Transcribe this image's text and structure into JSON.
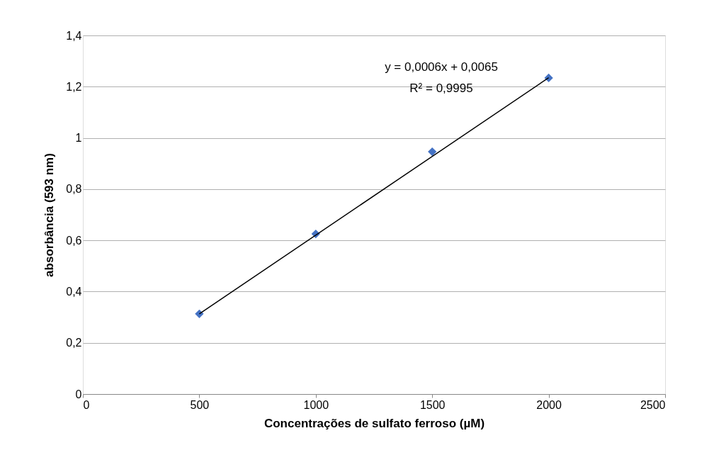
{
  "chart_data": {
    "type": "scatter",
    "xlabel": "Concentrações de sulfato ferroso (µM)",
    "ylabel": "absorbância (593 nm)",
    "x": [
      500,
      1000,
      1500,
      2000
    ],
    "series": [
      {
        "color": "#4472c4",
        "marker": "diamond",
        "values": [
          0.313,
          0.625,
          0.946,
          1.234
        ]
      },
      {
        "type": "line",
        "color": "#000000",
        "line_style": "solid",
        "marker": "none",
        "x": [
          500,
          2000
        ],
        "values": [
          0.313,
          1.235
        ]
      }
    ],
    "annotations": [
      "y = 0,0006x + 0,0065",
      "R² = 0,9995"
    ],
    "xlim": [
      0,
      2500
    ],
    "xticks": [
      0,
      500,
      1000,
      1500,
      2000,
      2500
    ],
    "ylim": [
      0,
      1.4
    ],
    "yticks": [
      0,
      {
        "value": 0.2,
        "label": "0,2"
      },
      {
        "value": 0.4,
        "label": "0,4"
      },
      {
        "value": 0.6,
        "label": "0,6"
      },
      {
        "value": 0.8,
        "label": "0,8"
      },
      1,
      {
        "value": 1.2,
        "label": "1,2"
      },
      {
        "value": 1.4,
        "label": "1,4"
      }
    ],
    "grid": "y",
    "legend": false
  }
}
